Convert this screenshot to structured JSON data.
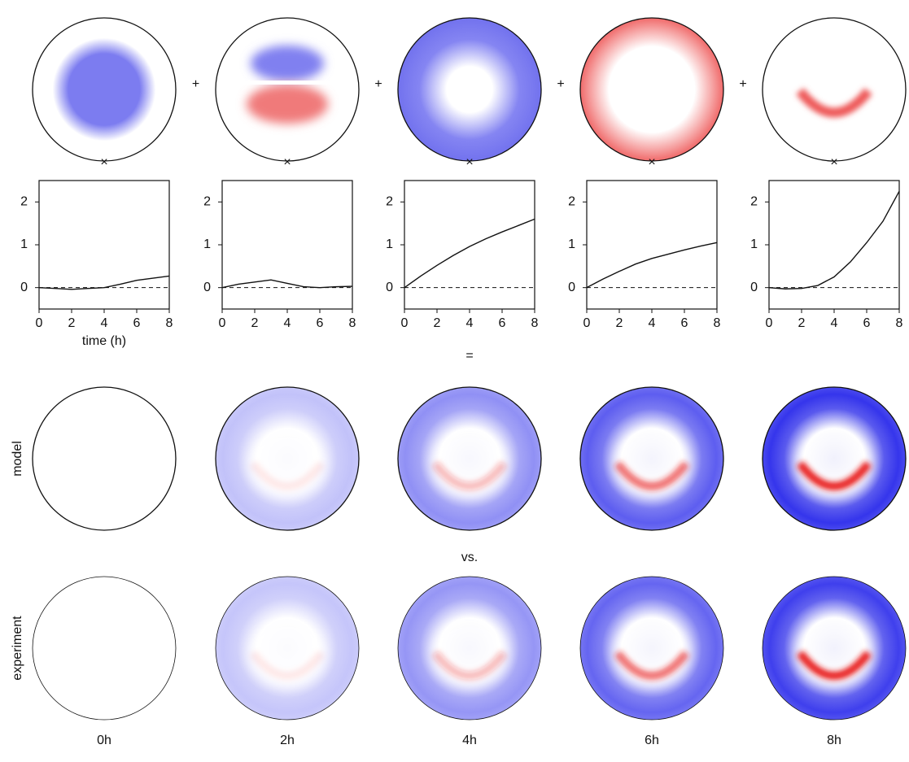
{
  "chart_data": [
    {
      "type": "line",
      "x_label": "time (h)",
      "x": [
        0,
        1,
        2,
        3,
        4,
        5,
        6,
        7,
        8
      ],
      "values": [
        0,
        -0.02,
        -0.04,
        -0.02,
        0.0,
        0.08,
        0.17,
        0.22,
        0.27
      ],
      "xlim": [
        0,
        8
      ],
      "ylim": [
        -0.5,
        2.5
      ],
      "xticks": [
        0,
        2,
        4,
        6,
        8
      ],
      "yticks": [
        0,
        1,
        2
      ],
      "hline": 0
    },
    {
      "type": "line",
      "x": [
        0,
        1,
        2,
        3,
        4,
        5,
        6,
        7,
        8
      ],
      "values": [
        0,
        0.08,
        0.13,
        0.18,
        0.1,
        0.02,
        0.0,
        0.02,
        0.03
      ],
      "xlim": [
        0,
        8
      ],
      "ylim": [
        -0.5,
        2.5
      ],
      "xticks": [
        0,
        2,
        4,
        6,
        8
      ],
      "yticks": [
        0,
        1,
        2
      ],
      "hline": 0
    },
    {
      "type": "line",
      "x": [
        0,
        1,
        2,
        3,
        4,
        5,
        6,
        7,
        8
      ],
      "values": [
        0,
        0.27,
        0.52,
        0.75,
        0.96,
        1.14,
        1.3,
        1.45,
        1.6
      ],
      "xlim": [
        0,
        8
      ],
      "ylim": [
        -0.5,
        2.5
      ],
      "xticks": [
        0,
        2,
        4,
        6,
        8
      ],
      "yticks": [
        0,
        1,
        2
      ],
      "hline": 0
    },
    {
      "type": "line",
      "x": [
        0,
        1,
        2,
        3,
        4,
        5,
        6,
        7,
        8
      ],
      "values": [
        0,
        0.2,
        0.38,
        0.55,
        0.68,
        0.78,
        0.88,
        0.97,
        1.05
      ],
      "xlim": [
        0,
        8
      ],
      "ylim": [
        -0.5,
        2.5
      ],
      "xticks": [
        0,
        2,
        4,
        6,
        8
      ],
      "yticks": [
        0,
        1,
        2
      ],
      "hline": 0
    },
    {
      "type": "line",
      "x": [
        0,
        1,
        2,
        3,
        4,
        5,
        6,
        7,
        8
      ],
      "values": [
        0,
        -0.03,
        -0.02,
        0.05,
        0.25,
        0.6,
        1.05,
        1.55,
        2.25
      ],
      "xlim": [
        0,
        8
      ],
      "ylim": [
        -0.5,
        2.5
      ],
      "xticks": [
        0,
        2,
        4,
        6,
        8
      ],
      "yticks": [
        0,
        1,
        2
      ],
      "hline": 0
    }
  ],
  "operators": {
    "plus": [
      "+",
      "+",
      "+",
      "+"
    ],
    "times": [
      "×",
      "×",
      "×",
      "×",
      "×"
    ],
    "equals": "=",
    "versus": "vs."
  },
  "row_labels": [
    "model",
    "experiment"
  ],
  "time_labels": [
    "0h",
    "2h",
    "4h",
    "6h",
    "8h"
  ]
}
